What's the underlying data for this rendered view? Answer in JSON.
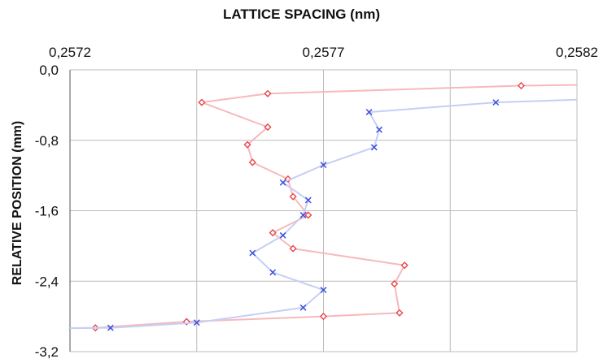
{
  "chart_data": {
    "type": "line",
    "title": "LATTICE SPACING (nm)",
    "ylabel": "RELATIVE POSITION (mm)",
    "xlim": [
      0.2572,
      0.2582
    ],
    "ylim": [
      -3.2,
      0.0
    ],
    "x_ticks": [
      {
        "value": 0.2572,
        "label": "0,2572"
      },
      {
        "value": 0.2577,
        "label": "0,2577"
      },
      {
        "value": 0.2582,
        "label": "0,2582"
      }
    ],
    "x_grid": [
      0.2572,
      0.25745,
      0.2577,
      0.25795,
      0.2582
    ],
    "y_ticks": [
      {
        "value": 0.0,
        "label": "0,0"
      },
      {
        "value": -0.8,
        "label": "-0,8"
      },
      {
        "value": -1.6,
        "label": "-1,6"
      },
      {
        "value": -2.4,
        "label": "-2,4"
      },
      {
        "value": -3.2,
        "label": "-3,2"
      }
    ],
    "grid": true,
    "legend": "none",
    "series": [
      {
        "color": "#e8474a",
        "line_color": "#f7b9bb",
        "marker": "diamond",
        "x": [
          0.25835,
          0.25809,
          0.25759,
          0.25746,
          0.25759,
          0.25755,
          0.25756,
          0.25763,
          0.25764,
          0.25767,
          0.2576,
          0.25764,
          0.25786,
          0.25784,
          0.25785,
          0.2577,
          0.25743,
          0.25725,
          0.257
        ],
        "y": [
          -0.16,
          -0.18,
          -0.27,
          -0.37,
          -0.65,
          -0.85,
          -1.05,
          -1.24,
          -1.44,
          -1.65,
          -1.85,
          -2.03,
          -2.22,
          -2.43,
          -2.76,
          -2.8,
          -2.86,
          -2.93,
          -2.95
        ]
      },
      {
        "color": "#3a4fdf",
        "line_color": "#c5cff6",
        "marker": "x",
        "x": [
          0.25835,
          0.25804,
          0.25779,
          0.25781,
          0.2578,
          0.2577,
          0.25762,
          0.25767,
          0.25766,
          0.25762,
          0.25756,
          0.2576,
          0.2577,
          0.25766,
          0.25745,
          0.25728,
          0.257
        ],
        "y": [
          -0.31,
          -0.37,
          -0.48,
          -0.68,
          -0.88,
          -1.08,
          -1.28,
          -1.48,
          -1.65,
          -1.88,
          -2.08,
          -2.3,
          -2.5,
          -2.7,
          -2.87,
          -2.93,
          -2.94
        ]
      }
    ]
  }
}
